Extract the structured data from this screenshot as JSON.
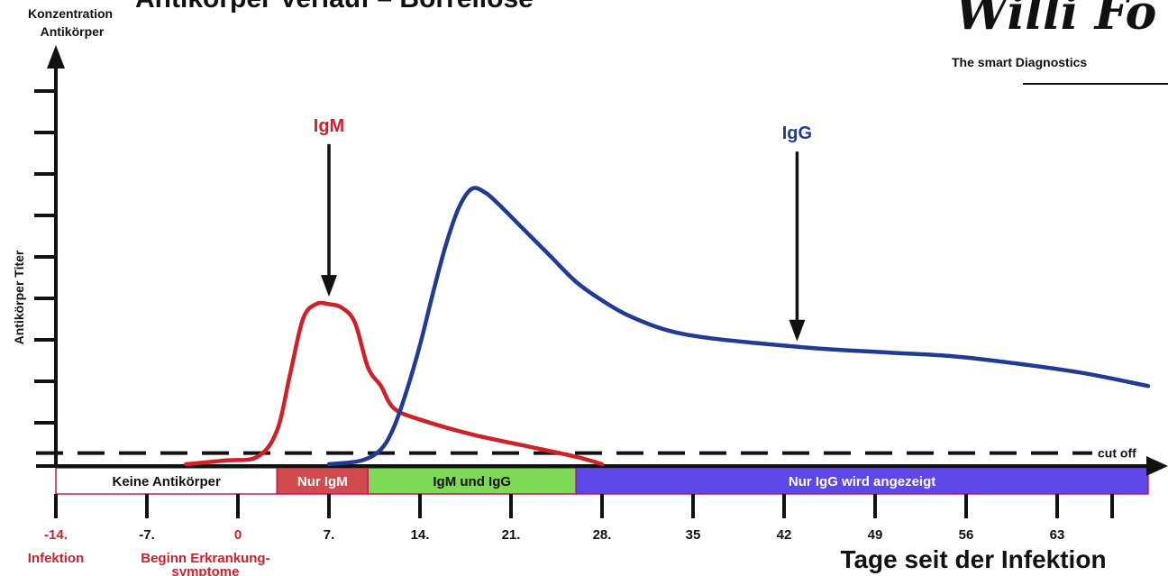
{
  "header": {
    "title_partial": "Antikörper Verlauf – Borreliose",
    "brand": "Willi Fo",
    "brand_tagline": "The smart Diagnostics"
  },
  "chart_data": {
    "type": "line",
    "ylabel_top": [
      "Konzentration",
      "Antikörper"
    ],
    "ylabel_side": "Antikörper Titer",
    "xlabel": "Tage seit der Infektion",
    "x_ticks": [
      {
        "label": "-14.",
        "x": -14,
        "color": "#d0202a"
      },
      {
        "label": "-7.",
        "x": -7,
        "color": "#111111"
      },
      {
        "label": "0",
        "x": 0,
        "color": "#d0202a"
      },
      {
        "label": "7.",
        "x": 7,
        "color": "#111111"
      },
      {
        "label": "14.",
        "x": 14,
        "color": "#111111"
      },
      {
        "label": "21.",
        "x": 21,
        "color": "#111111"
      },
      {
        "label": "28.",
        "x": 28,
        "color": "#111111"
      },
      {
        "label": "35",
        "x": 35,
        "color": "#111111"
      },
      {
        "label": "42",
        "x": 42,
        "color": "#111111"
      },
      {
        "label": "49",
        "x": 49,
        "color": "#111111"
      },
      {
        "label": "56",
        "x": 56,
        "color": "#111111"
      },
      {
        "label": "63",
        "x": 63,
        "color": "#111111"
      }
    ],
    "x_range": [
      -14,
      70
    ],
    "y_range": [
      0,
      10
    ],
    "cutoff": {
      "value": 0.3,
      "label": "cut off"
    },
    "series": [
      {
        "name": "IgM",
        "color": "#d0202a",
        "points": [
          [
            -4,
            0
          ],
          [
            -1,
            0.1
          ],
          [
            1.5,
            0.2
          ],
          [
            3,
            0.9
          ],
          [
            4,
            2.4
          ],
          [
            5,
            3.9
          ],
          [
            6,
            4.3
          ],
          [
            7,
            4.3
          ],
          [
            8,
            4.2
          ],
          [
            9,
            3.8
          ],
          [
            10,
            2.6
          ],
          [
            11,
            2.1
          ],
          [
            12,
            1.5
          ],
          [
            14,
            1.2
          ],
          [
            18,
            0.8
          ],
          [
            22,
            0.5
          ],
          [
            26,
            0.2
          ],
          [
            28,
            0
          ]
        ]
      },
      {
        "name": "IgG",
        "color": "#1f3b94",
        "points": [
          [
            7,
            0
          ],
          [
            9.5,
            0.1
          ],
          [
            11,
            0.4
          ],
          [
            12,
            1
          ],
          [
            13,
            2
          ],
          [
            14,
            3.2
          ],
          [
            15,
            4.6
          ],
          [
            16,
            5.9
          ],
          [
            17,
            6.9
          ],
          [
            18,
            7.4
          ],
          [
            19,
            7.3
          ],
          [
            20,
            7
          ],
          [
            22,
            6.3
          ],
          [
            24,
            5.6
          ],
          [
            26,
            4.9
          ],
          [
            28,
            4.4
          ],
          [
            30,
            4
          ],
          [
            33,
            3.6
          ],
          [
            36,
            3.4
          ],
          [
            40,
            3.25
          ],
          [
            45,
            3.1
          ],
          [
            50,
            3
          ],
          [
            55,
            2.9
          ],
          [
            60,
            2.7
          ],
          [
            65,
            2.45
          ],
          [
            70,
            2.1
          ]
        ]
      }
    ],
    "annotations": [
      {
        "text": "IgM",
        "x": 7,
        "color": "#d0202a",
        "arrow_from_y": 8.6,
        "arrow_to_y": 4.5
      },
      {
        "text": "IgG",
        "x": 43,
        "color": "#1f3b94",
        "arrow_from_y": 8.4,
        "arrow_to_y": 3.3
      }
    ],
    "phases": [
      {
        "label": "Keine Antikörper",
        "from": -14,
        "to": 3,
        "fill": "#ffffff",
        "text_color": "#111111"
      },
      {
        "label": "Nur IgM",
        "from": 3,
        "to": 10,
        "fill": "#d14a4d",
        "text_color": "#ffffff"
      },
      {
        "label": "IgM und IgG",
        "from": 10,
        "to": 26,
        "fill": "#7ed957",
        "text_color": "#111111"
      },
      {
        "label": "Nur IgG wird angezeigt",
        "from": 26,
        "to": 70,
        "fill": "#5b48e6",
        "text_color": "#ffffff"
      }
    ],
    "below_axis_notes": [
      {
        "text": "Infektion",
        "x": -14,
        "color": "#d0202a"
      },
      {
        "text": "Beginn Erkrankung-",
        "x": -2.5,
        "color": "#d0202a"
      },
      {
        "text": "symptome",
        "x": -2.5,
        "color": "#d0202a"
      }
    ],
    "grid": false
  }
}
